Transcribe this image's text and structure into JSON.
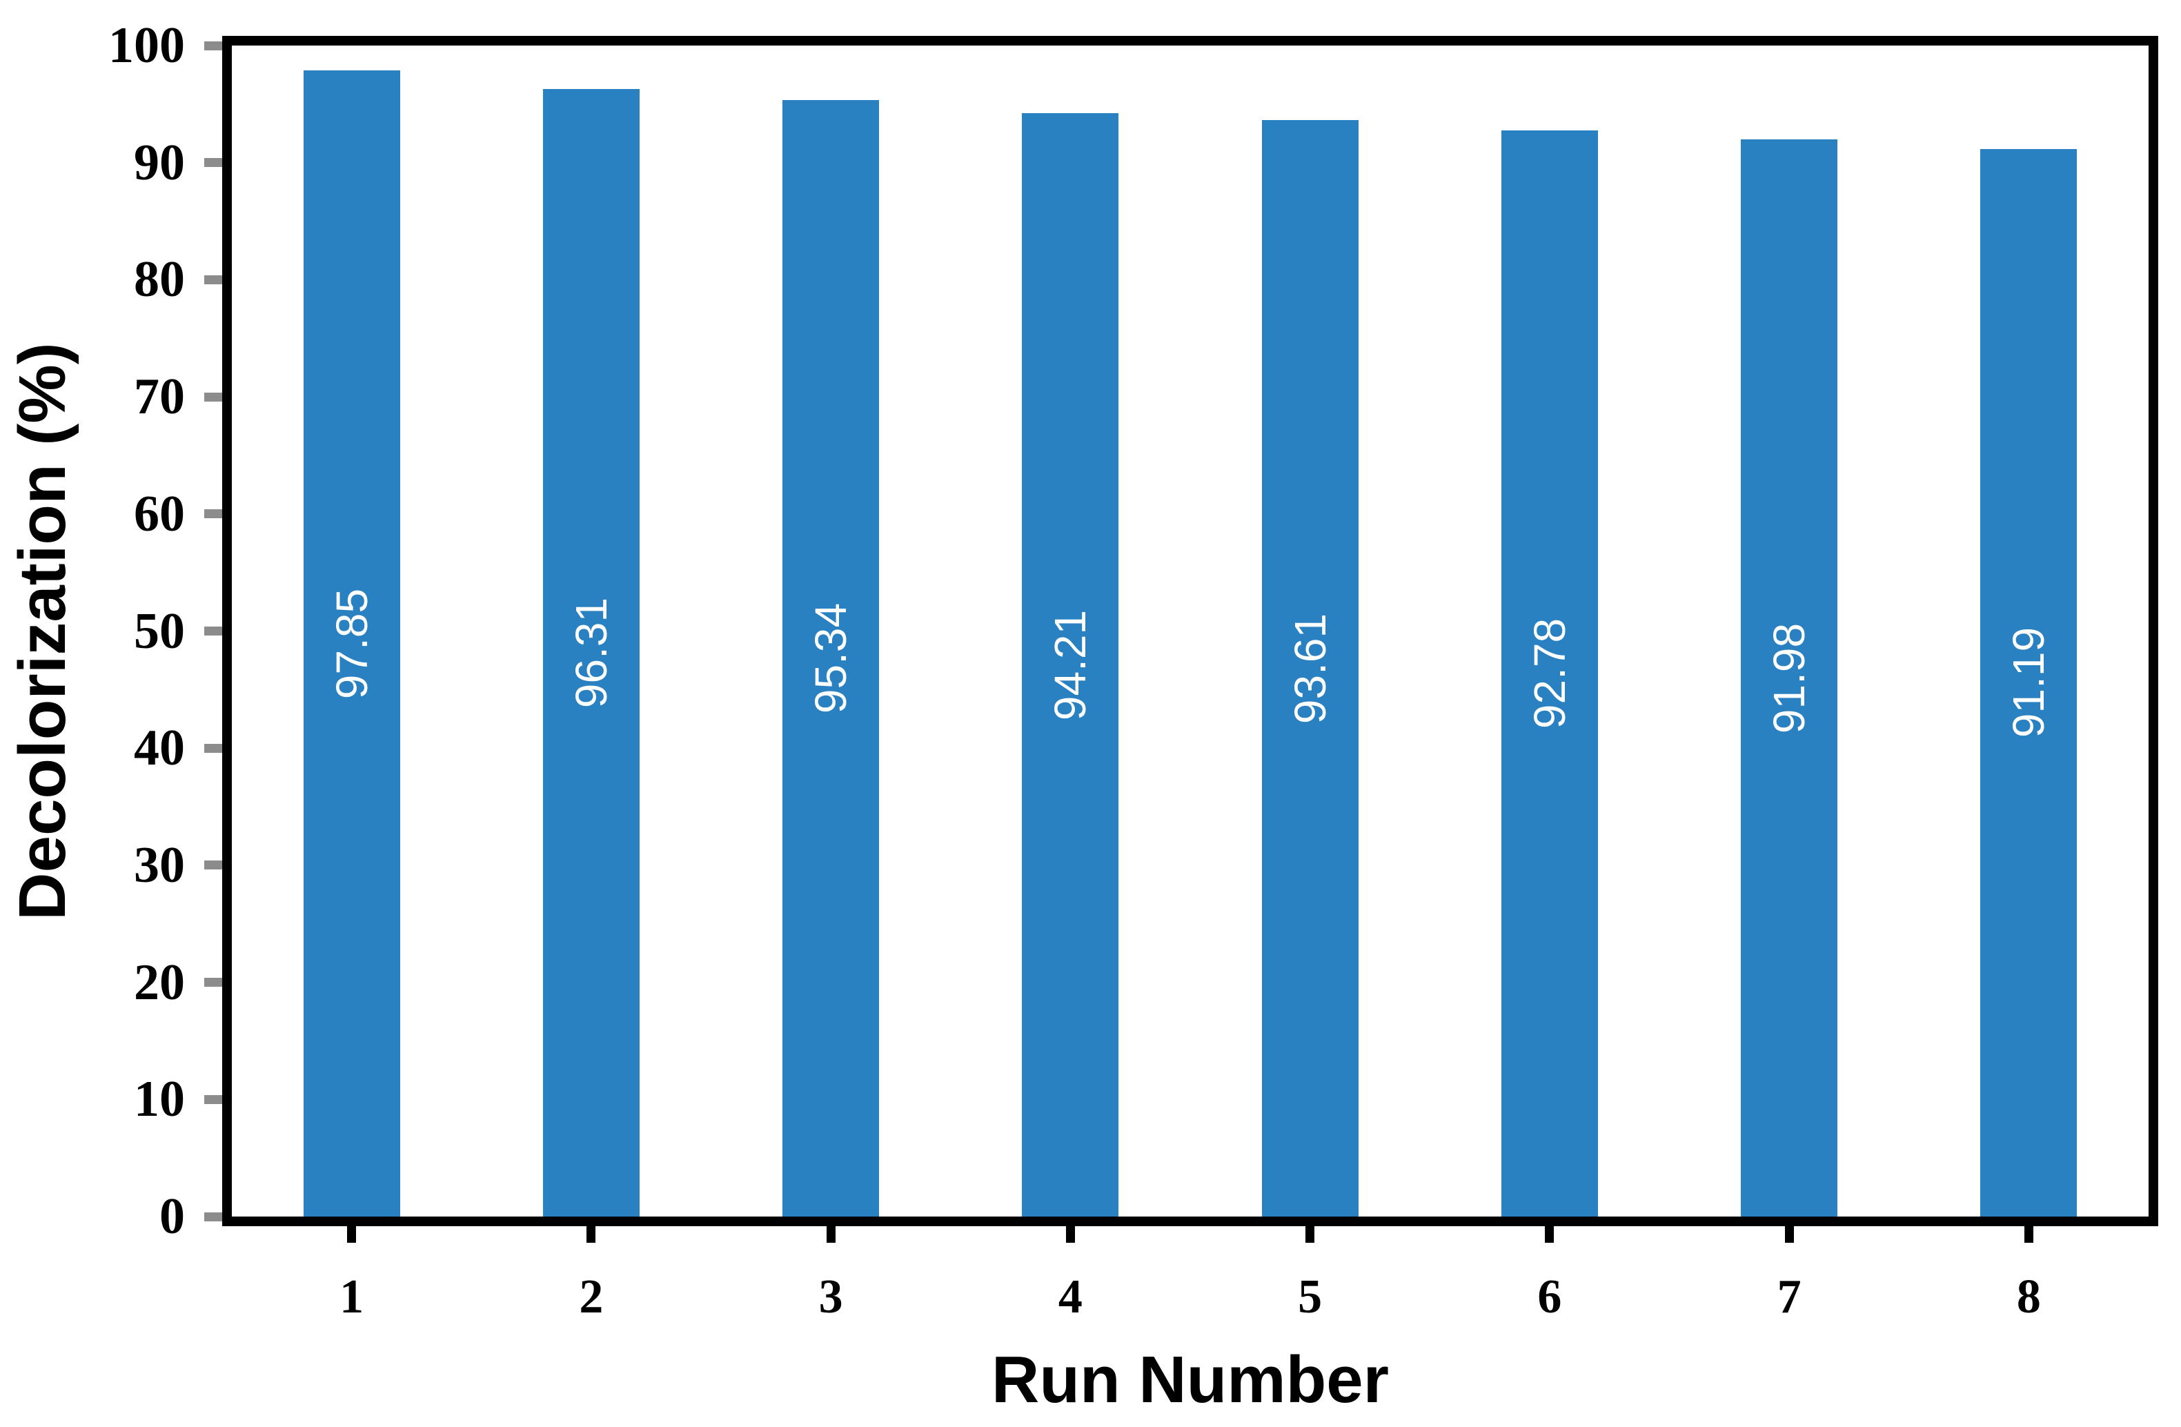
{
  "chart_data": {
    "type": "bar",
    "title": "",
    "xlabel": "Run Number",
    "ylabel": "Decolorization (%)",
    "categories": [
      "1",
      "2",
      "3",
      "4",
      "5",
      "6",
      "7",
      "8"
    ],
    "values": [
      97.85,
      96.31,
      95.34,
      94.21,
      93.61,
      92.78,
      91.98,
      91.19
    ],
    "bar_labels": [
      "97.85",
      "96.31",
      "95.34",
      "94.21",
      "93.61",
      "92.78",
      "91.98",
      "91.19"
    ],
    "ylim": [
      0,
      100
    ],
    "yticks": [
      0,
      10,
      20,
      30,
      40,
      50,
      60,
      70,
      80,
      90,
      100
    ],
    "ytick_labels": [
      "0",
      "10",
      "20",
      "30",
      "40",
      "50",
      "60",
      "70",
      "80",
      "90",
      "100"
    ],
    "grid": false,
    "legend": "none",
    "bar_label_orientation": "rotated-90-inside-center",
    "colors": {
      "bar": "#2A81C2",
      "bar_label_text": "#FFFFFF",
      "frame": "#000000",
      "y_tick_mark": "#8C8C8C",
      "x_tick_mark": "#000000",
      "text": "#000000",
      "background": "#FFFFFF"
    }
  }
}
